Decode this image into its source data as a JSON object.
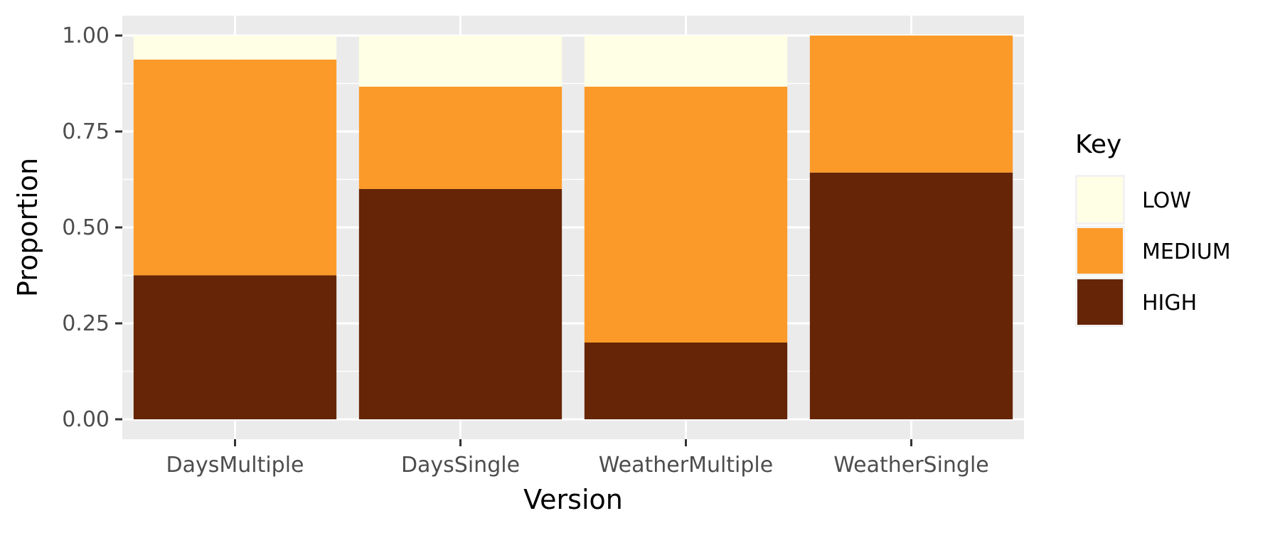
{
  "chart_data": {
    "type": "bar",
    "stacked": true,
    "xlabel": "Version",
    "ylabel": "Proportion",
    "categories": [
      "DaysMultiple",
      "DaysSingle",
      "WeatherMultiple",
      "WeatherSingle"
    ],
    "ylim": [
      0,
      1
    ],
    "yticks": [
      "0.00",
      "0.25",
      "0.50",
      "0.75",
      "1.00"
    ],
    "series": [
      {
        "name": "HIGH",
        "color": "#662506",
        "values": [
          0.375,
          0.6,
          0.2,
          0.643
        ]
      },
      {
        "name": "MEDIUM",
        "color": "#FB9A29",
        "values": [
          0.5625,
          0.2667,
          0.6667,
          0.357
        ]
      },
      {
        "name": "LOW",
        "color": "#FFFFE5",
        "values": [
          0.0625,
          0.1333,
          0.1333,
          0.0
        ]
      }
    ],
    "legend": {
      "title": "Key",
      "position": "right",
      "order": [
        "LOW",
        "MEDIUM",
        "HIGH"
      ]
    },
    "grid": true,
    "panel_background": "#EBEBEB"
  }
}
